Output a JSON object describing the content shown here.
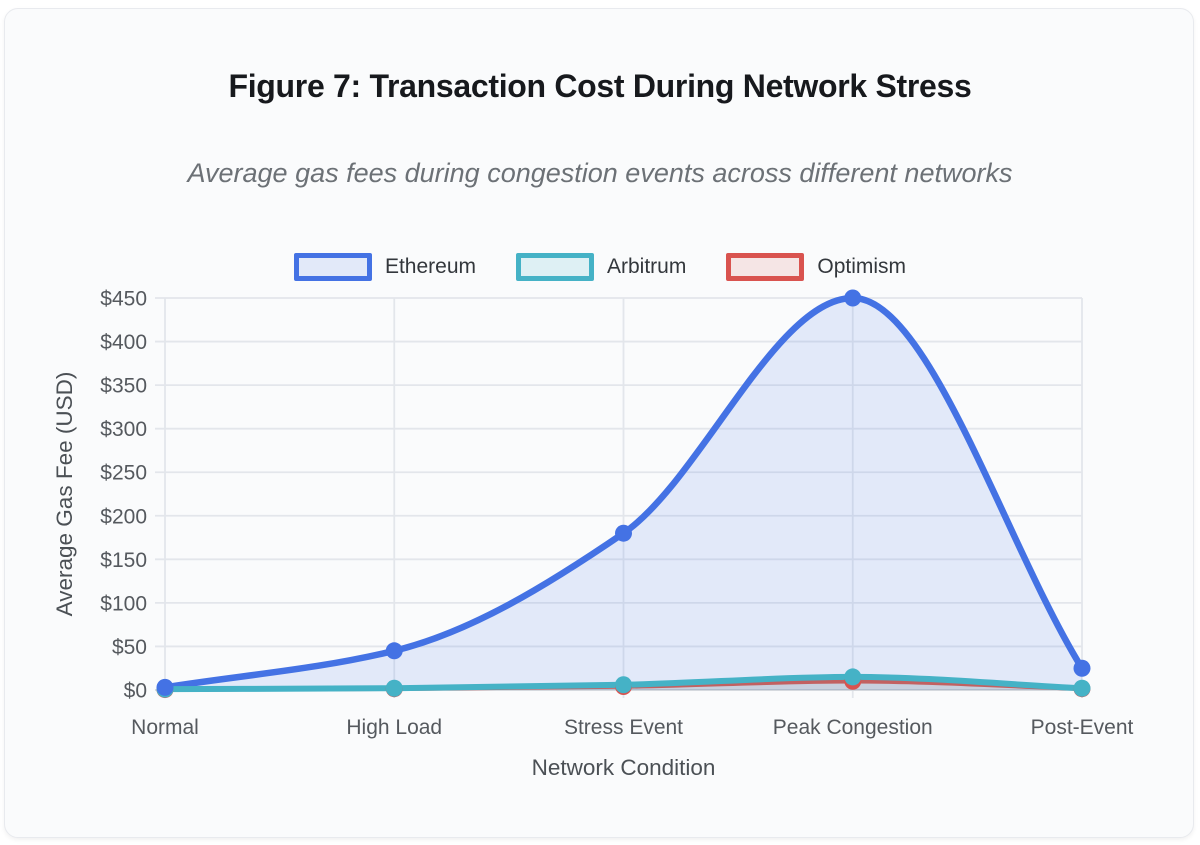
{
  "figure": {
    "title": "Figure 7: Transaction Cost During Network Stress",
    "subtitle": "Average gas fees during congestion events across different networks"
  },
  "chart_data": {
    "type": "line",
    "title": "Figure 7: Transaction Cost During Network Stress",
    "subtitle": "Average gas fees during congestion events across different networks",
    "categories": [
      "Normal",
      "High Load",
      "Stress Event",
      "Peak Congestion",
      "Post-Event"
    ],
    "series": [
      {
        "name": "Ethereum",
        "color": "#4472e4",
        "fill": "rgba(68,114,228,0.13)",
        "values": [
          3,
          45,
          180,
          450,
          25
        ]
      },
      {
        "name": "Arbitrum",
        "color": "#45b2c6",
        "fill": "rgba(69,178,198,0.15)",
        "values": [
          1,
          2,
          6,
          15,
          2
        ]
      },
      {
        "name": "Optimism",
        "color": "#d9534f",
        "fill": "rgba(217,83,79,0.13)",
        "values": [
          0.5,
          1.5,
          4,
          10,
          1.5
        ]
      }
    ],
    "xlabel": "Network Condition",
    "ylabel": "Average Gas Fee (USD)",
    "ylim": [
      0,
      450
    ],
    "y_ticks": [
      0,
      50,
      100,
      150,
      200,
      250,
      300,
      350,
      400,
      450
    ],
    "currency_prefix": "$",
    "grid": true,
    "legend_position": "top",
    "smoothing": "monotone"
  },
  "theme": {
    "card_background": "#fafbfc",
    "grid_color": "#e3e6eb",
    "axis_color": "#d5d9de",
    "tick_text_color": "#55595e",
    "axis_title_color": "#4b5055",
    "title_color": "#17191d",
    "subtitle_color": "#6c7176",
    "legend_text_color": "#33373c"
  }
}
